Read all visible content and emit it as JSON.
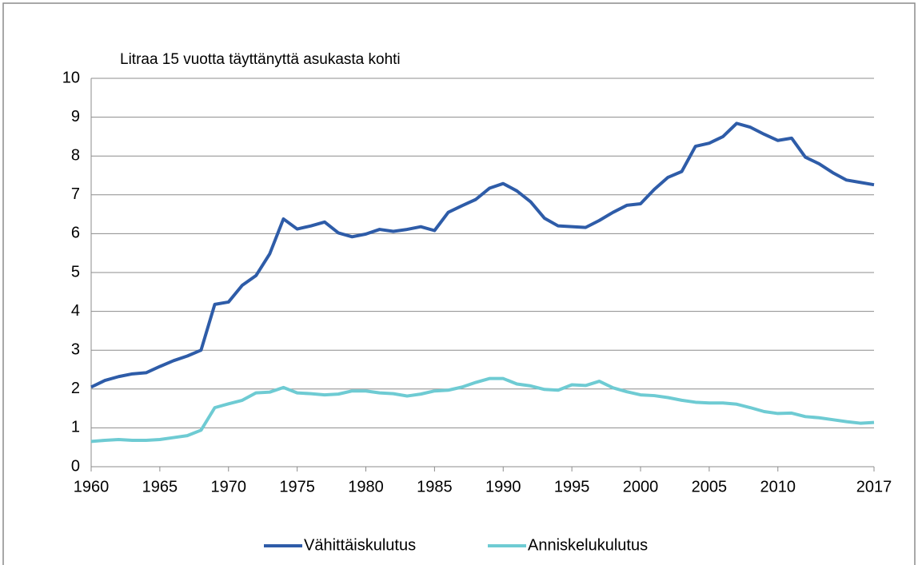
{
  "chart_data": {
    "type": "line",
    "title": "Litraa 15 vuotta täyttänyttä asukasta kohti",
    "x": [
      1960,
      1961,
      1962,
      1963,
      1964,
      1965,
      1966,
      1967,
      1968,
      1969,
      1970,
      1971,
      1972,
      1973,
      1974,
      1975,
      1976,
      1977,
      1978,
      1979,
      1980,
      1981,
      1982,
      1983,
      1984,
      1985,
      1986,
      1987,
      1988,
      1989,
      1990,
      1991,
      1992,
      1993,
      1994,
      1995,
      1996,
      1997,
      1998,
      1999,
      2000,
      2001,
      2002,
      2003,
      2004,
      2005,
      2006,
      2007,
      2008,
      2009,
      2010,
      2011,
      2012,
      2013,
      2014,
      2015,
      2016,
      2017
    ],
    "series": [
      {
        "name": "Vähittäiskulutus",
        "color": "#2e5ca8",
        "values": [
          2.05,
          2.22,
          2.32,
          2.39,
          2.42,
          2.58,
          2.73,
          2.85,
          3.0,
          4.18,
          4.24,
          4.67,
          4.92,
          5.48,
          6.38,
          6.12,
          6.2,
          6.3,
          6.02,
          5.92,
          5.99,
          6.11,
          6.06,
          6.11,
          6.18,
          6.08,
          6.55,
          6.72,
          6.88,
          7.17,
          7.29,
          7.1,
          6.82,
          6.4,
          6.2,
          6.18,
          6.16,
          6.34,
          6.55,
          6.73,
          6.77,
          7.14,
          7.45,
          7.6,
          8.25,
          8.33,
          8.5,
          8.84,
          8.74,
          8.56,
          8.4,
          8.46,
          7.97,
          7.8,
          7.57,
          7.38,
          7.32,
          7.26
        ]
      },
      {
        "name": "Anniskelukulutus",
        "color": "#6ecbd3",
        "values": [
          0.65,
          0.68,
          0.7,
          0.68,
          0.68,
          0.7,
          0.75,
          0.8,
          0.94,
          1.52,
          1.62,
          1.71,
          1.9,
          1.92,
          2.04,
          1.9,
          1.88,
          1.85,
          1.87,
          1.95,
          1.95,
          1.9,
          1.88,
          1.82,
          1.87,
          1.95,
          1.97,
          2.05,
          2.17,
          2.27,
          2.27,
          2.13,
          2.08,
          1.99,
          1.97,
          2.11,
          2.09,
          2.2,
          2.03,
          1.93,
          1.85,
          1.83,
          1.78,
          1.71,
          1.66,
          1.64,
          1.64,
          1.61,
          1.52,
          1.42,
          1.37,
          1.38,
          1.29,
          1.26,
          1.21,
          1.16,
          1.12,
          1.14
        ]
      }
    ],
    "xlim": [
      1960,
      2017
    ],
    "xticks": [
      1960,
      1965,
      1970,
      1975,
      1980,
      1985,
      1990,
      1995,
      2000,
      2005,
      2010,
      2017
    ],
    "ylim": [
      0,
      10
    ],
    "yticks": [
      0,
      1,
      2,
      3,
      4,
      5,
      6,
      7,
      8,
      9,
      10
    ],
    "grid": true,
    "legend": "bottom"
  }
}
